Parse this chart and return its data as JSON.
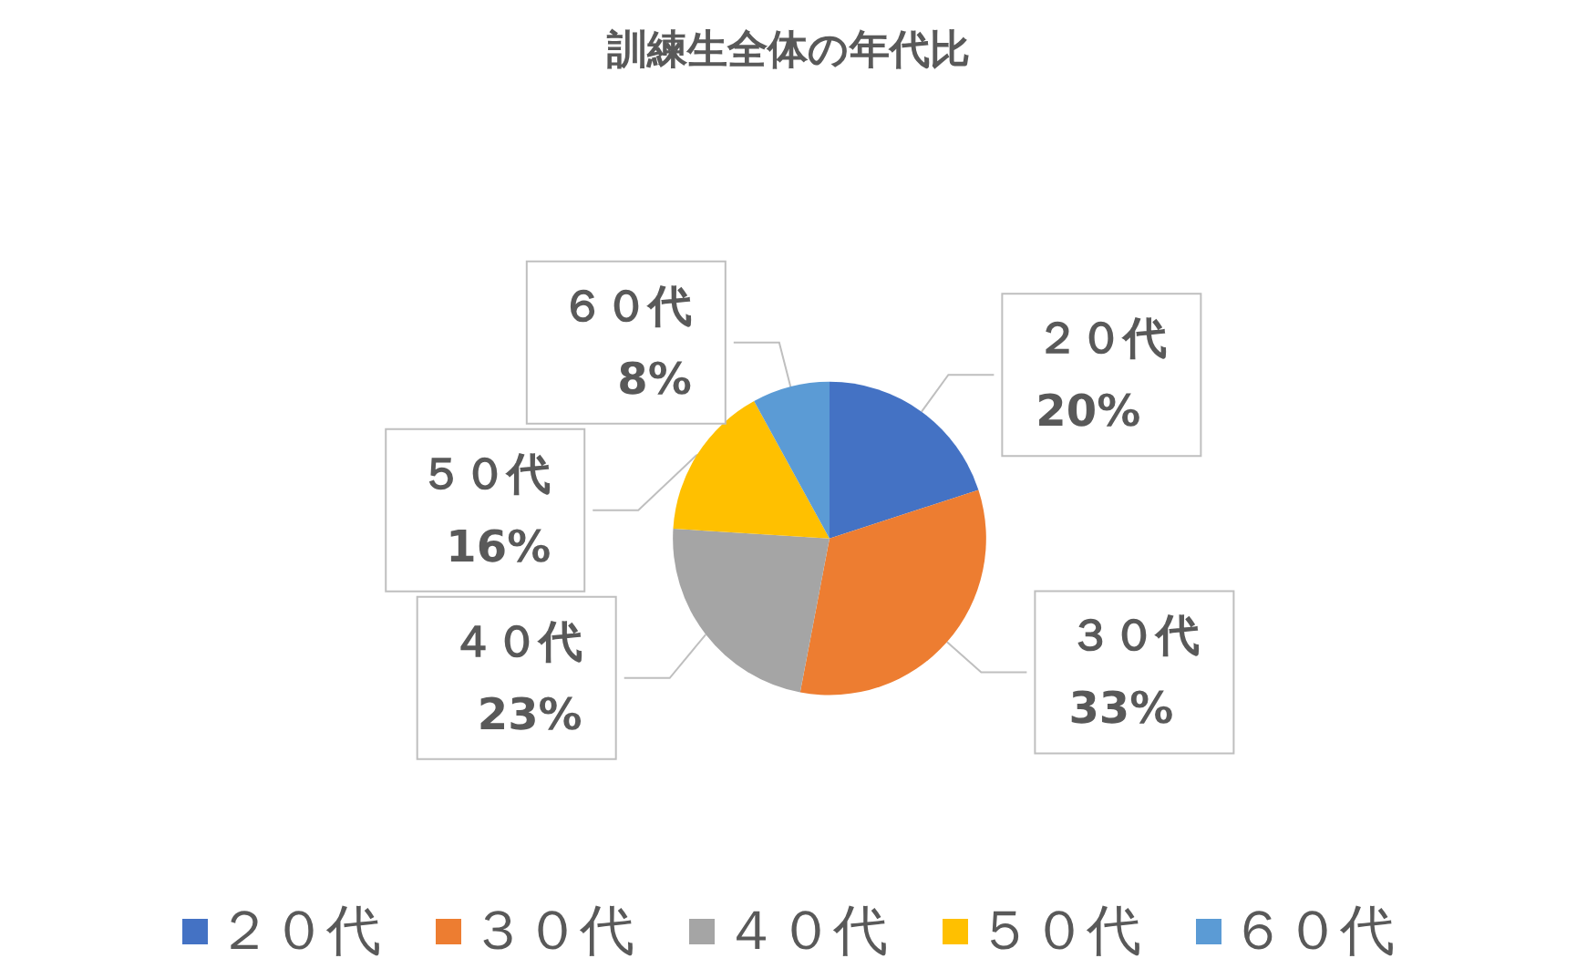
{
  "chart_data": {
    "type": "pie",
    "title": "訓練生全体の年代比",
    "categories": [
      "２０代",
      "３０代",
      "４０代",
      "５０代",
      "６０代"
    ],
    "values": [
      20,
      33,
      23,
      16,
      8
    ],
    "value_labels": [
      "20%",
      "33%",
      "23%",
      "16%",
      "8%"
    ],
    "colors": [
      "#4472c4",
      "#ed7d31",
      "#a5a5a5",
      "#ffc000",
      "#5b9bd5"
    ],
    "legend": "bottom"
  }
}
